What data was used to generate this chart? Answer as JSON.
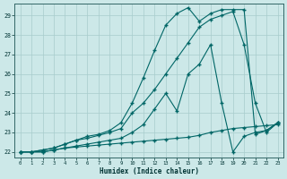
{
  "xlabel": "Humidex (Indice chaleur)",
  "bg_color": "#cce8e8",
  "grid_color": "#a8cccc",
  "line_color": "#006666",
  "xlim": [
    -0.5,
    23.5
  ],
  "ylim": [
    21.7,
    29.6
  ],
  "xticks": [
    0,
    1,
    2,
    3,
    4,
    5,
    6,
    7,
    8,
    9,
    10,
    11,
    12,
    13,
    14,
    15,
    16,
    17,
    18,
    19,
    20,
    21,
    22,
    23
  ],
  "yticks": [
    22,
    23,
    24,
    25,
    26,
    27,
    28,
    29
  ],
  "series": [
    {
      "x": [
        0,
        1,
        2,
        3,
        4,
        5,
        6,
        7,
        8,
        9,
        10,
        11,
        12,
        13,
        14,
        15,
        16,
        17,
        18,
        19,
        20,
        21,
        22,
        23
      ],
      "y": [
        22,
        22,
        22,
        22.1,
        22.2,
        22.25,
        22.3,
        22.35,
        22.4,
        22.45,
        22.5,
        22.55,
        22.6,
        22.65,
        22.7,
        22.75,
        22.85,
        23.0,
        23.1,
        23.2,
        23.25,
        23.3,
        23.35,
        23.4
      ]
    },
    {
      "x": [
        0,
        1,
        2,
        3,
        4,
        5,
        6,
        7,
        8,
        9,
        10,
        11,
        12,
        13,
        14,
        15,
        16,
        17,
        18,
        19,
        20,
        21,
        22,
        23
      ],
      "y": [
        22,
        22,
        22,
        22.1,
        22.2,
        22.3,
        22.4,
        22.5,
        22.6,
        22.7,
        23.0,
        23.4,
        24.2,
        25.0,
        24.1,
        26.0,
        26.5,
        27.5,
        24.5,
        22.0,
        22.8,
        23.0,
        23.1,
        23.5
      ]
    },
    {
      "x": [
        0,
        1,
        2,
        3,
        4,
        5,
        6,
        7,
        8,
        9,
        10,
        11,
        12,
        13,
        14,
        15,
        16,
        17,
        18,
        19,
        20,
        21,
        22,
        23
      ],
      "y": [
        22,
        22,
        22.1,
        22.2,
        22.4,
        22.6,
        22.7,
        22.85,
        23.0,
        23.2,
        24.0,
        24.5,
        25.2,
        26.0,
        26.8,
        27.6,
        28.4,
        28.8,
        29.0,
        29.2,
        27.5,
        24.5,
        23.0,
        23.5
      ]
    },
    {
      "x": [
        0,
        1,
        2,
        3,
        4,
        5,
        6,
        7,
        8,
        9,
        10,
        11,
        12,
        13,
        14,
        15,
        16,
        17,
        18,
        19,
        20,
        21,
        22,
        23
      ],
      "y": [
        22,
        22,
        22.1,
        22.2,
        22.4,
        22.6,
        22.8,
        22.9,
        23.1,
        23.5,
        24.5,
        25.8,
        27.2,
        28.5,
        29.1,
        29.4,
        28.7,
        29.1,
        29.3,
        29.3,
        29.3,
        22.9,
        23.1,
        23.5
      ]
    }
  ]
}
